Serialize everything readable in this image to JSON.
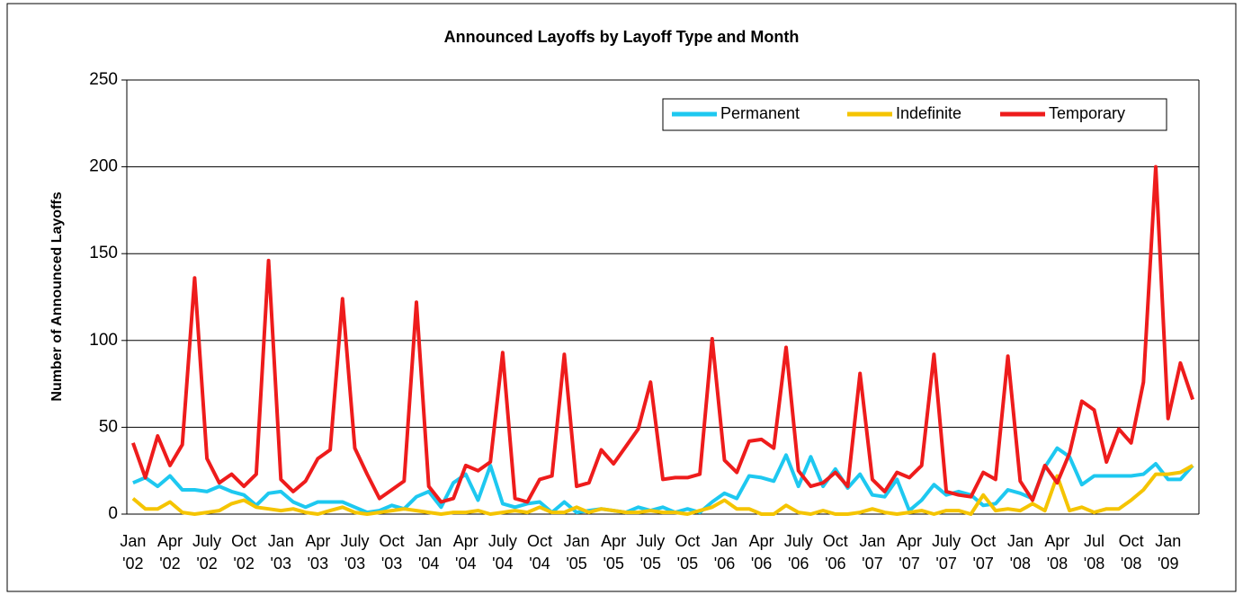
{
  "chart_data": {
    "type": "line",
    "title": "Announced Layoffs by Layoff Type and Month",
    "y_label": "Number of Announced Layoffs",
    "categories": [
      "Jan\n'02",
      null,
      null,
      "Apr\n'02",
      null,
      null,
      "July\n'02",
      null,
      null,
      "Oct\n'02",
      null,
      null,
      "Jan\n'03",
      null,
      null,
      "Apr\n'03",
      null,
      null,
      "July\n'03",
      null,
      null,
      "Oct\n'03",
      null,
      null,
      "Jan\n'04",
      null,
      null,
      "Apr\n'04",
      null,
      null,
      "July\n'04",
      null,
      null,
      "Oct\n'04",
      null,
      null,
      "Jan\n'05",
      null,
      null,
      "Apr\n'05",
      null,
      null,
      "July\n'05",
      null,
      null,
      "Oct\n'05",
      null,
      null,
      "Jan\n'06",
      null,
      null,
      "Apr\n'06",
      null,
      null,
      "July\n'06",
      null,
      null,
      "Oct\n'06",
      null,
      null,
      "Jan\n'07",
      null,
      null,
      "Apr\n'07",
      null,
      null,
      "July\n'07",
      null,
      null,
      "Oct\n'07",
      null,
      null,
      "Jan\n'08",
      null,
      null,
      "Apr\n'08",
      null,
      null,
      "Jul\n'08",
      null,
      null,
      "Oct\n'08",
      null,
      null,
      "Jan\n'09",
      null,
      null
    ],
    "series": [
      {
        "name": "Permanent",
        "color": "#1ec8f0",
        "values": [
          18,
          21,
          16,
          22,
          14,
          14,
          13,
          16,
          13,
          11,
          5,
          12,
          13,
          7,
          4,
          7,
          7,
          7,
          4,
          1,
          2,
          5,
          3,
          10,
          13,
          4,
          18,
          23,
          8,
          28,
          6,
          4,
          6,
          7,
          1,
          7,
          1,
          2,
          3,
          2,
          1,
          4,
          2,
          4,
          1,
          3,
          1,
          7,
          12,
          9,
          22,
          21,
          19,
          34,
          16,
          33,
          16,
          26,
          15,
          23,
          11,
          10,
          20,
          2,
          8,
          17,
          11,
          13,
          11,
          5,
          6,
          14,
          12,
          9,
          27,
          38,
          33,
          17,
          22,
          22,
          22,
          22,
          23,
          29,
          20,
          20,
          28
        ]
      },
      {
        "name": "Indefinite",
        "color": "#f5c400",
        "values": [
          9,
          3,
          3,
          7,
          1,
          0,
          1,
          2,
          6,
          8,
          4,
          3,
          2,
          3,
          1,
          0,
          2,
          4,
          1,
          0,
          1,
          2,
          3,
          2,
          1,
          0,
          1,
          1,
          2,
          0,
          1,
          2,
          1,
          4,
          1,
          1,
          4,
          1,
          3,
          2,
          1,
          1,
          2,
          1,
          1,
          0,
          2,
          4,
          8,
          3,
          3,
          0,
          0,
          5,
          1,
          0,
          2,
          0,
          0,
          1,
          3,
          1,
          0,
          1,
          2,
          0,
          2,
          2,
          0,
          11,
          2,
          3,
          2,
          6,
          2,
          22,
          2,
          4,
          1,
          3,
          3,
          8,
          14,
          23,
          23,
          24,
          28
        ]
      },
      {
        "name": "Temporary",
        "color": "#ee1c1c",
        "values": [
          41,
          21,
          45,
          28,
          40,
          136,
          32,
          18,
          23,
          16,
          23,
          146,
          20,
          13,
          19,
          32,
          37,
          124,
          38,
          23,
          9,
          14,
          19,
          122,
          16,
          7,
          9,
          28,
          25,
          30,
          93,
          9,
          7,
          20,
          22,
          92,
          16,
          18,
          37,
          29,
          39,
          49,
          76,
          20,
          21,
          21,
          23,
          101,
          31,
          24,
          42,
          43,
          38,
          96,
          25,
          16,
          18,
          24,
          16,
          81,
          20,
          13,
          24,
          21,
          28,
          92,
          13,
          11,
          10,
          24,
          20,
          91,
          19,
          8,
          28,
          18,
          35,
          65,
          60,
          30,
          49,
          41,
          76,
          200,
          55,
          87,
          66
        ]
      }
    ],
    "ylim": [
      0,
      250
    ],
    "yticks": [
      0,
      50,
      100,
      150,
      200,
      250
    ],
    "grid": true,
    "legend": "upper right"
  }
}
